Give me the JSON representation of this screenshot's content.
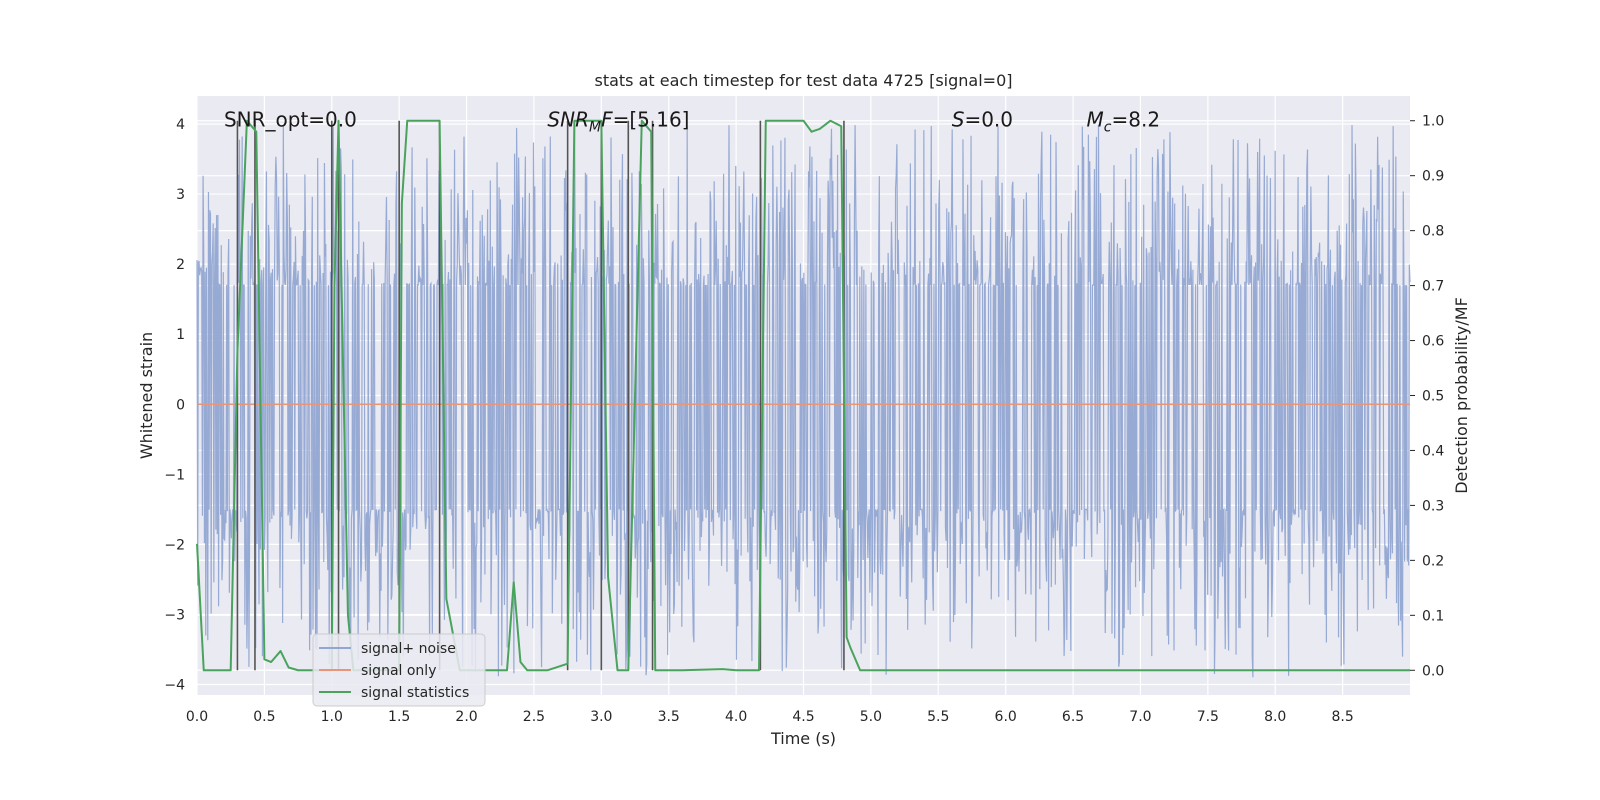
{
  "chart_data": {
    "type": "line",
    "title": "stats at each timestep for test data 4725 [signal=0]",
    "xlabel": "Time (s)",
    "ylabel": "Whitened strain",
    "y2label": "Detection probability/MF",
    "xlim": [
      0.0,
      9.0
    ],
    "ylim": [
      -4.15,
      4.4
    ],
    "y2lim": [
      -0.045,
      1.045
    ],
    "xticks": [
      "0.0",
      "0.5",
      "1.0",
      "1.5",
      "2.0",
      "2.5",
      "3.0",
      "3.5",
      "4.0",
      "4.5",
      "5.0",
      "5.5",
      "6.0",
      "6.5",
      "7.0",
      "7.5",
      "8.0",
      "8.5"
    ],
    "yticks": [
      "−4",
      "−3",
      "−2",
      "−1",
      "0",
      "1",
      "2",
      "3",
      "4"
    ],
    "y2ticks": [
      "0.0",
      "0.1",
      "0.2",
      "0.3",
      "0.4",
      "0.5",
      "0.6",
      "0.7",
      "0.8",
      "0.9",
      "1.0"
    ],
    "grid": true,
    "legend_position": "lower-left",
    "series": [
      {
        "name": "signal+ noise",
        "color": "#92a6d2",
        "kind": "noise",
        "spread": {
          "typical_min": -1.5,
          "typical_max": 1.7,
          "extreme_min": -3.9,
          "extreme_max": 4.0
        }
      },
      {
        "name": "signal only",
        "color": "#e8967a",
        "kind": "line",
        "x": [
          0.0,
          9.0
        ],
        "y": [
          0.0,
          0.0
        ]
      },
      {
        "name": "signal statistics",
        "color": "#4aa35c",
        "axis": "right",
        "kind": "line",
        "x": [
          0.0,
          0.05,
          0.25,
          0.3,
          0.37,
          0.44,
          0.5,
          0.55,
          0.62,
          0.68,
          0.75,
          1.0,
          1.02,
          1.05,
          1.08,
          1.12,
          1.16,
          1.3,
          1.5,
          1.52,
          1.56,
          1.8,
          1.85,
          1.95,
          2.2,
          2.3,
          2.35,
          2.4,
          2.45,
          2.6,
          2.75,
          2.8,
          3.0,
          3.05,
          3.12,
          3.2,
          3.3,
          3.37,
          3.4,
          3.6,
          3.9,
          4.0,
          4.17,
          4.22,
          4.5,
          4.56,
          4.62,
          4.7,
          4.78,
          4.82,
          4.85,
          4.92,
          5.1,
          5.5,
          6.0,
          9.0
        ],
        "y": [
          0.23,
          0.0,
          0.0,
          0.58,
          1.0,
          0.98,
          0.02,
          0.015,
          0.035,
          0.005,
          0.0,
          0.0,
          0.7,
          1.0,
          0.6,
          0.1,
          0.0,
          0.0,
          0.0,
          0.85,
          1.0,
          1.0,
          0.13,
          0.0,
          0.0,
          0.0,
          0.16,
          0.015,
          0.0,
          0.0,
          0.012,
          1.0,
          1.0,
          0.17,
          0.0,
          0.0,
          1.0,
          0.98,
          0.0,
          0.0,
          0.002,
          0.0,
          0.0,
          1.0,
          1.0,
          0.98,
          0.985,
          1.0,
          0.99,
          0.06,
          0.04,
          0.0,
          0.0,
          0.0,
          0.0,
          0.0
        ]
      }
    ],
    "vertical_markers": {
      "color": "#555555",
      "x": [
        0.3,
        0.43,
        1.0,
        1.05,
        1.5,
        1.8,
        2.75,
        3.0,
        3.2,
        3.38,
        4.18,
        4.8
      ],
      "y2_range": [
        0.0,
        1.0
      ]
    },
    "annotations": [
      {
        "text": "SNR_opt=0.0",
        "x": 0.2,
        "y": 4.05
      },
      {
        "text": "SNRMF=[5.16]",
        "x": 2.6,
        "y": 4.05
      },
      {
        "text": "S=0.0",
        "x": 5.6,
        "y": 4.05
      },
      {
        "text": "Mc=8.2",
        "x": 6.6,
        "y": 4.05
      }
    ]
  }
}
